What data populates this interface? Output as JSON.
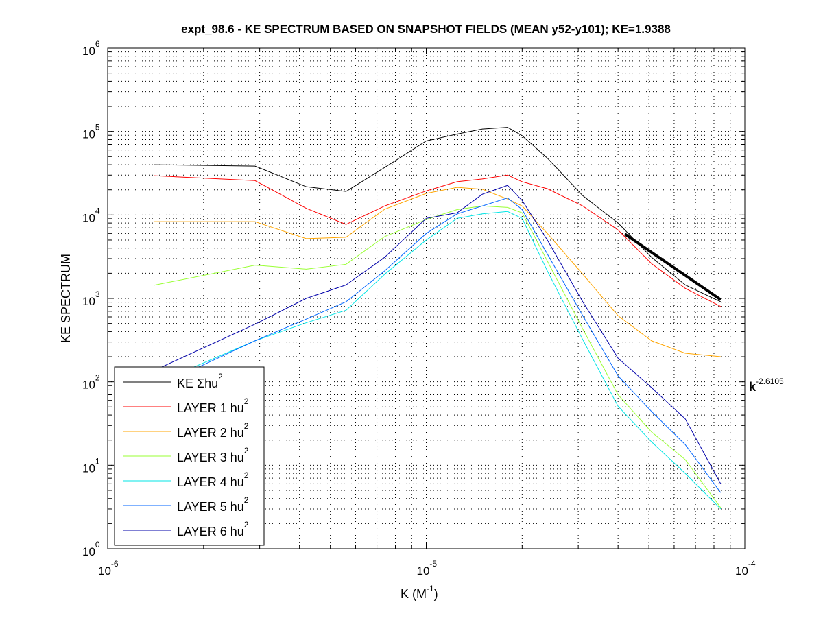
{
  "chart_data": {
    "type": "line",
    "title": "expt_98.6 - KE SPECTRUM BASED ON SNAPSHOT FIELDS (MEAN y52-y101); KE=1.9388",
    "xlabel": "K  (M",
    "xlabel_sup": "-1",
    "xlabel_end": ")",
    "ylabel": "KE SPECTRUM",
    "xscale": "log",
    "yscale": "log",
    "xlim": [
      1e-06,
      0.0001
    ],
    "ylim": [
      1,
      1000000
    ],
    "grid": true,
    "x_ticks": [
      {
        "base": "10",
        "exp": "-6"
      },
      {
        "base": "10",
        "exp": "-5"
      },
      {
        "base": "10",
        "exp": "-4"
      }
    ],
    "y_ticks": [
      {
        "base": "10",
        "exp": "0"
      },
      {
        "base": "10",
        "exp": "1"
      },
      {
        "base": "10",
        "exp": "2"
      },
      {
        "base": "10",
        "exp": "3"
      },
      {
        "base": "10",
        "exp": "4"
      },
      {
        "base": "10",
        "exp": "5"
      },
      {
        "base": "10",
        "exp": "6"
      }
    ],
    "x": [
      1.4e-06,
      2.9e-06,
      4.2e-06,
      5.6e-06,
      7.4e-06,
      1e-05,
      1.25e-05,
      1.5e-05,
      1.8e-05,
      2e-05,
      2.4e-05,
      3.1e-05,
      4e-05,
      5.1e-05,
      6.5e-05,
      8.4e-05
    ],
    "series": [
      {
        "name": "KE Σhu",
        "sup": "2",
        "color": "#000000",
        "values": [
          40000,
          38500,
          21800,
          19100,
          37000,
          77000,
          93000,
          107000,
          112000,
          89000,
          48000,
          17000,
          8000,
          3100,
          1450,
          910
        ]
      },
      {
        "name": "LAYER 1 hu",
        "sup": "2",
        "color": "#ff0000",
        "values": [
          29500,
          25800,
          12000,
          7700,
          12800,
          19400,
          25000,
          27000,
          30000,
          25000,
          20600,
          12800,
          6600,
          2600,
          1320,
          800
        ]
      },
      {
        "name": "LAYER 2 hu",
        "sup": "2",
        "color": "#ffa500",
        "values": [
          8300,
          8300,
          5200,
          5400,
          11700,
          18100,
          21400,
          20300,
          15500,
          12800,
          6000,
          1950,
          620,
          310,
          220,
          200
        ]
      },
      {
        "name": "LAYER 3 hu",
        "sup": "2",
        "color": "#99ff33",
        "values": [
          1440,
          2500,
          2240,
          2560,
          5500,
          8800,
          11600,
          12800,
          12300,
          10600,
          2800,
          430,
          70,
          25,
          11.7,
          3.1
        ]
      },
      {
        "name": "LAYER 4 hu",
        "sup": "2",
        "color": "#00e5e5",
        "values": [
          94,
          310,
          510,
          720,
          1940,
          5000,
          9100,
          10300,
          11000,
          9100,
          2130,
          320,
          51,
          19,
          8,
          3.0
        ]
      },
      {
        "name": "LAYER 5 hu",
        "sup": "2",
        "color": "#0066ff",
        "values": [
          85,
          310,
          565,
          910,
          2130,
          6000,
          10300,
          12800,
          16000,
          11600,
          3400,
          620,
          118,
          44,
          17.7,
          4.7
        ]
      },
      {
        "name": "LAYER 6 hu",
        "sup": "2",
        "color": "#0000aa",
        "values": [
          137,
          490,
          1000,
          1450,
          3100,
          9100,
          10600,
          17700,
          22600,
          14900,
          5000,
          910,
          192,
          85,
          36,
          6.0
        ]
      }
    ],
    "fit": {
      "label": "k",
      "exponent": "-2.6105",
      "slope": -2.6105,
      "x": [
        4.2e-05,
        8.4e-05
      ],
      "y_start": 5900
    },
    "legend_placement": "bottom-left"
  }
}
